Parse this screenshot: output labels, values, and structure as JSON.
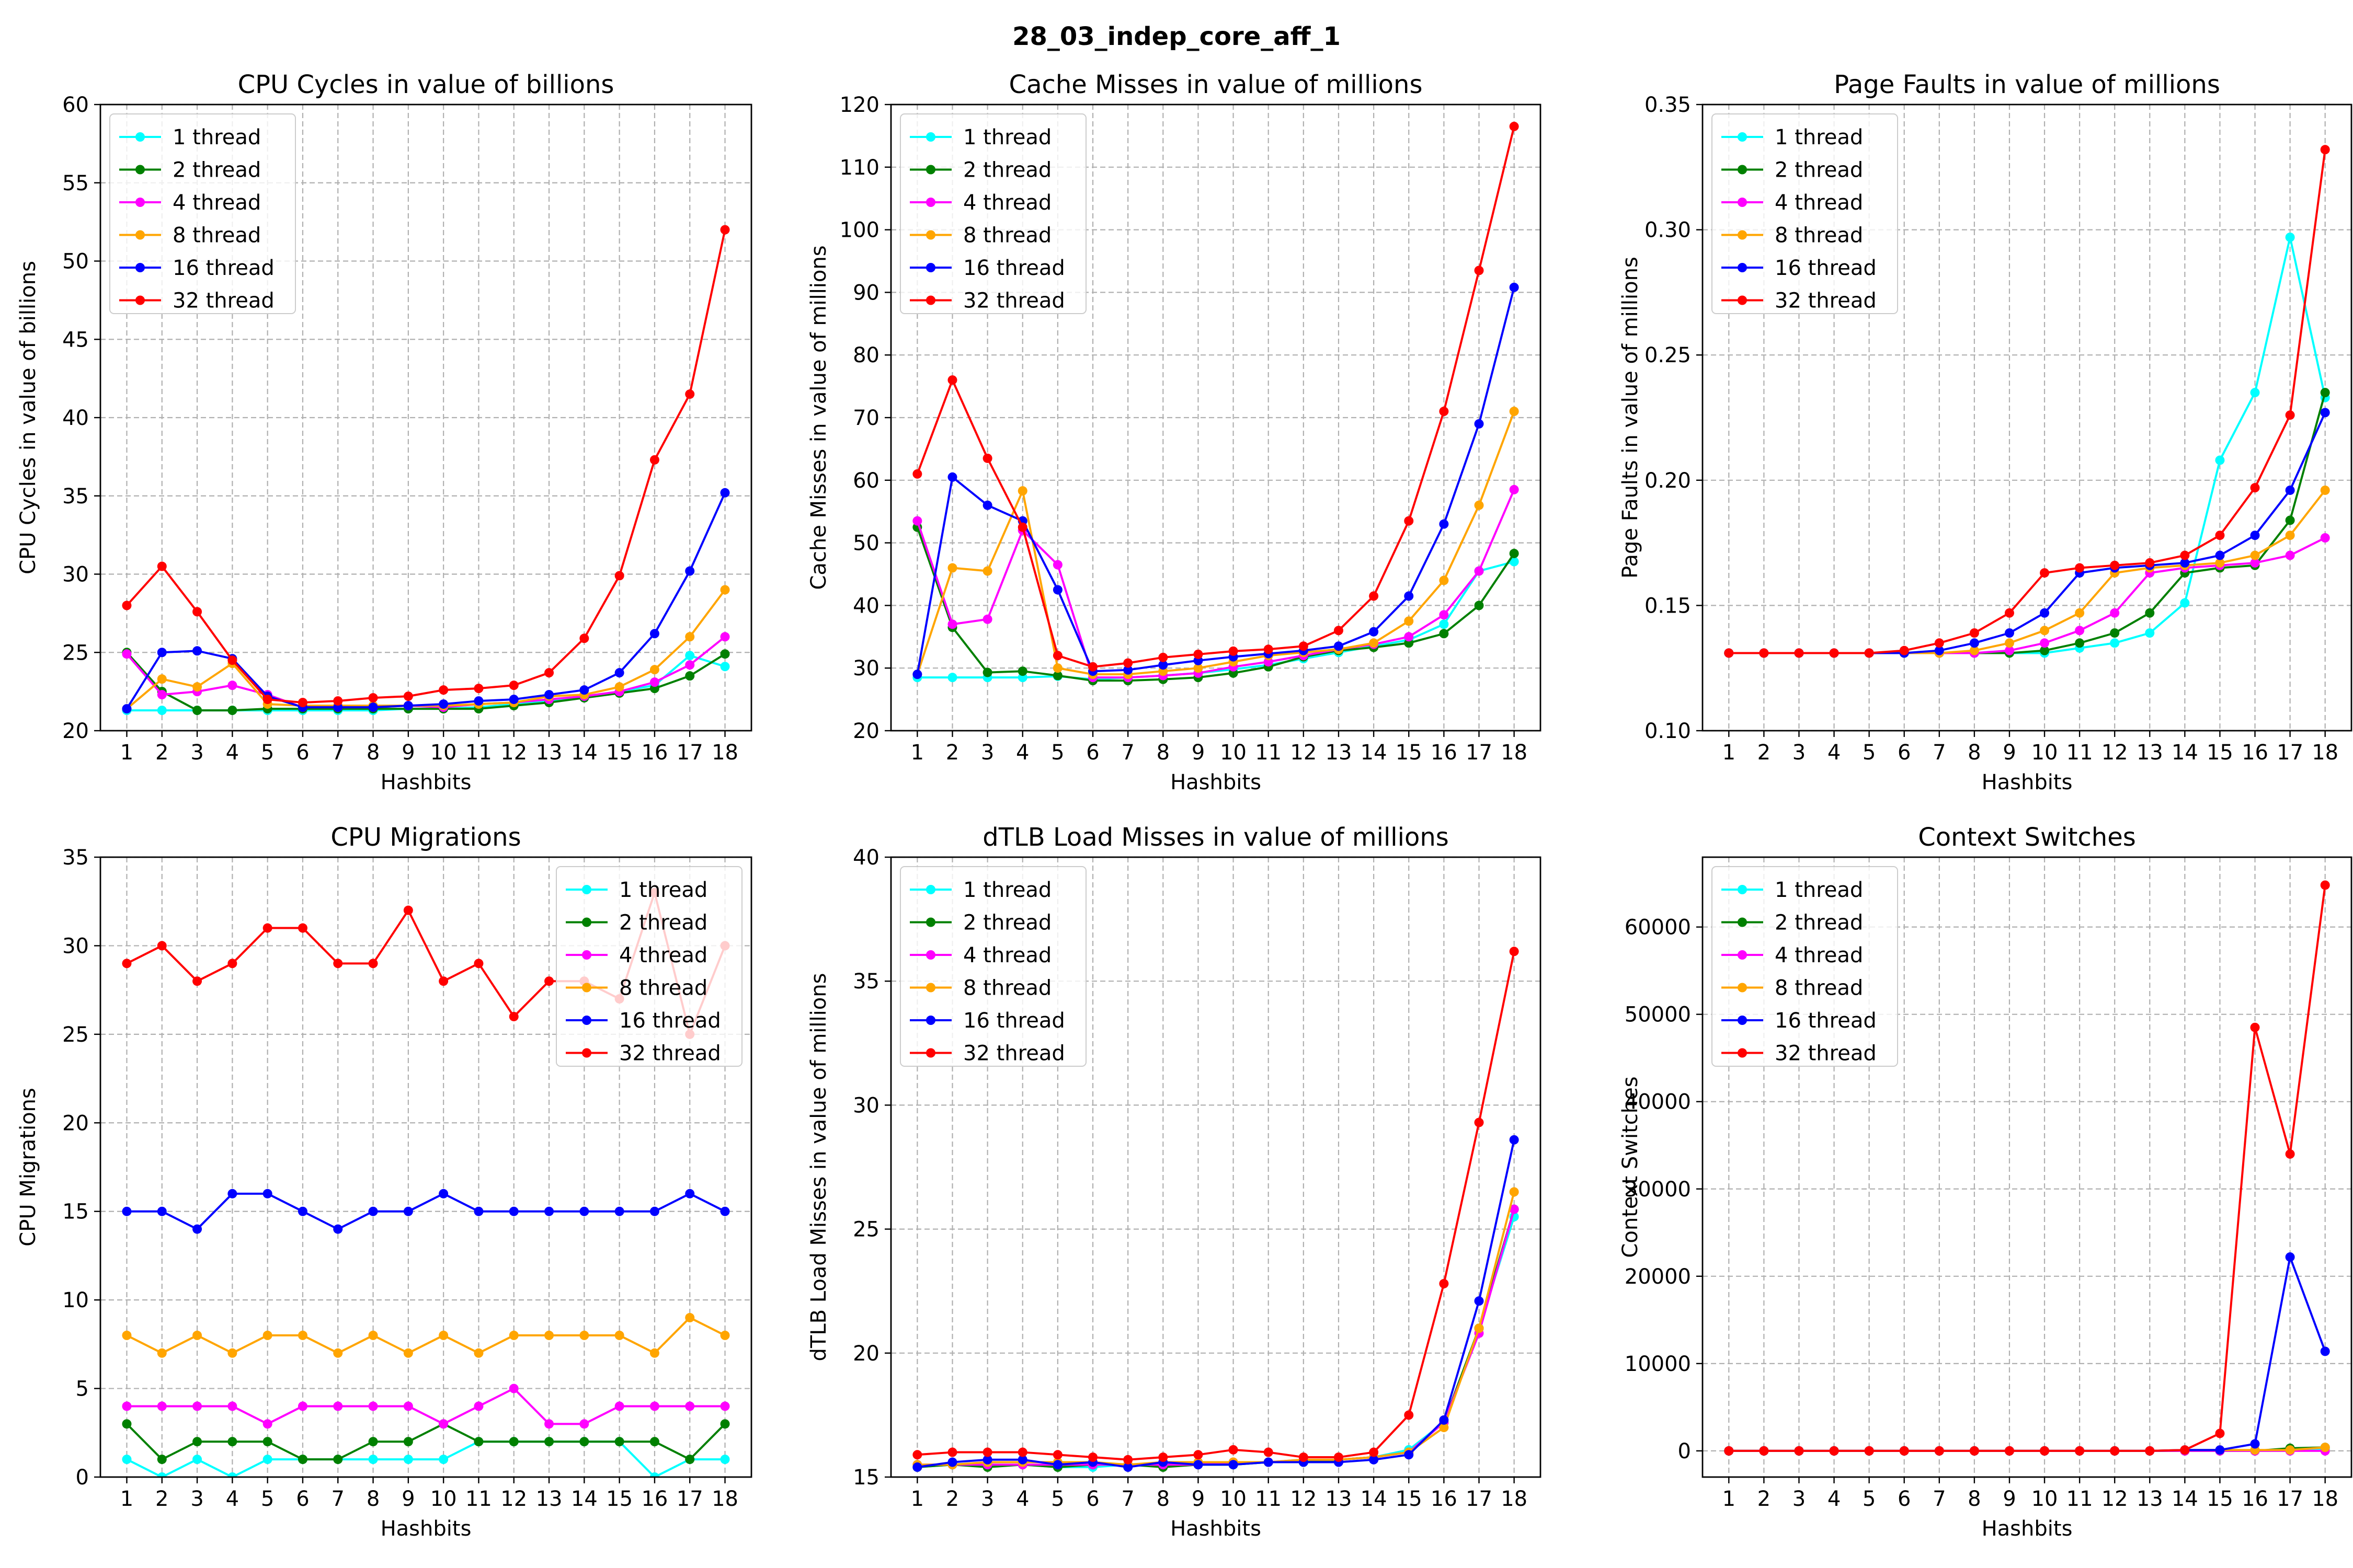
{
  "figure_title": "28_03_indep_core_aff_1",
  "series_colors": {
    "1 thread": "#00ffff",
    "2 thread": "#008000",
    "4 thread": "#ff00ff",
    "8 thread": "#ffa500",
    "16 thread": "#0000ff",
    "32 thread": "#ff0000"
  },
  "chart_data": [
    {
      "type": "line",
      "title": "CPU Cycles in value of billions",
      "xlabel": "Hashbits",
      "ylabel": "CPU Cycles in value of billions",
      "x": [
        1,
        2,
        3,
        4,
        5,
        6,
        7,
        8,
        9,
        10,
        11,
        12,
        13,
        14,
        15,
        16,
        17,
        18
      ],
      "ylim": [
        20,
        60
      ],
      "yticks": [
        20,
        25,
        30,
        35,
        40,
        45,
        50,
        55,
        60
      ],
      "ytick_labels": [
        "20",
        "25",
        "30",
        "35",
        "40",
        "45",
        "50",
        "55",
        "60"
      ],
      "grid": true,
      "legend_position": "upper-left",
      "series": [
        {
          "name": "1 thread",
          "values": [
            21.3,
            21.3,
            21.3,
            21.3,
            21.3,
            21.3,
            21.3,
            21.3,
            21.4,
            21.4,
            21.5,
            21.7,
            21.9,
            22.1,
            22.5,
            22.9,
            24.8,
            24.1
          ]
        },
        {
          "name": "2 thread",
          "values": [
            25.0,
            22.5,
            21.3,
            21.3,
            21.4,
            21.4,
            21.4,
            21.4,
            21.4,
            21.4,
            21.4,
            21.6,
            21.8,
            22.1,
            22.4,
            22.7,
            23.5,
            24.9
          ]
        },
        {
          "name": "4 thread",
          "values": [
            24.9,
            22.3,
            22.5,
            22.9,
            22.3,
            21.5,
            21.5,
            21.5,
            21.6,
            21.5,
            21.7,
            21.8,
            22.0,
            22.2,
            22.5,
            23.1,
            24.2,
            26.0
          ]
        },
        {
          "name": "8 thread",
          "values": [
            21.4,
            23.3,
            22.8,
            24.3,
            21.7,
            21.6,
            21.6,
            21.6,
            21.6,
            21.6,
            21.7,
            21.8,
            22.2,
            22.3,
            22.8,
            23.9,
            26.0,
            29.0
          ]
        },
        {
          "name": "16 thread",
          "values": [
            21.4,
            25.0,
            25.1,
            24.6,
            22.2,
            21.5,
            21.5,
            21.5,
            21.6,
            21.7,
            21.9,
            22.0,
            22.3,
            22.6,
            23.7,
            26.2,
            30.2,
            35.2
          ]
        },
        {
          "name": "32 thread",
          "values": [
            28.0,
            30.5,
            27.6,
            24.5,
            22.0,
            21.8,
            21.9,
            22.1,
            22.2,
            22.6,
            22.7,
            22.9,
            23.7,
            25.9,
            29.9,
            37.3,
            41.5,
            52.0
          ]
        }
      ]
    },
    {
      "type": "line",
      "title": "Cache Misses in value of millions",
      "xlabel": "Hashbits",
      "ylabel": "Cache Misses in value of millions",
      "x": [
        1,
        2,
        3,
        4,
        5,
        6,
        7,
        8,
        9,
        10,
        11,
        12,
        13,
        14,
        15,
        16,
        17,
        18
      ],
      "ylim": [
        20,
        120
      ],
      "yticks": [
        20,
        30,
        40,
        50,
        60,
        70,
        80,
        90,
        100,
        110,
        120
      ],
      "ytick_labels": [
        "20",
        "30",
        "40",
        "50",
        "60",
        "70",
        "80",
        "90",
        "100",
        "110",
        "120"
      ],
      "grid": true,
      "legend_position": "upper-left",
      "series": [
        {
          "name": "1 thread",
          "values": [
            28.5,
            28.5,
            28.5,
            28.5,
            28.7,
            28.2,
            28.5,
            28.8,
            29.2,
            29.8,
            30.5,
            31.5,
            32.5,
            33.5,
            34.5,
            37.0,
            45.5,
            47.0
          ]
        },
        {
          "name": "2 thread",
          "values": [
            52.5,
            36.5,
            29.3,
            29.5,
            28.8,
            28.0,
            28.0,
            28.2,
            28.5,
            29.2,
            30.2,
            31.8,
            32.8,
            33.3,
            34.0,
            35.5,
            40.0,
            48.3
          ]
        },
        {
          "name": "4 thread",
          "values": [
            53.5,
            37.0,
            37.8,
            52.0,
            46.5,
            28.5,
            28.5,
            28.8,
            29.2,
            30.2,
            31.0,
            32.0,
            33.0,
            33.8,
            35.0,
            38.5,
            45.5,
            58.5
          ]
        },
        {
          "name": "8 thread",
          "values": [
            29.0,
            46.0,
            45.5,
            58.3,
            30.0,
            29.0,
            29.0,
            29.5,
            30.0,
            31.0,
            32.0,
            32.5,
            33.0,
            34.0,
            37.5,
            44.0,
            56.0,
            71.0
          ]
        },
        {
          "name": "16 thread",
          "values": [
            29.0,
            60.5,
            56.0,
            53.5,
            42.5,
            29.5,
            29.7,
            30.5,
            31.2,
            31.8,
            32.3,
            32.8,
            33.5,
            35.8,
            41.5,
            53.0,
            69.0,
            90.8
          ]
        },
        {
          "name": "32 thread",
          "values": [
            61.0,
            76.0,
            63.5,
            52.5,
            32.0,
            30.2,
            30.8,
            31.7,
            32.2,
            32.7,
            33.0,
            33.5,
            36.0,
            41.5,
            53.5,
            71.0,
            93.5,
            116.5
          ]
        }
      ]
    },
    {
      "type": "line",
      "title": "Page Faults in value of millions",
      "xlabel": "Hashbits",
      "ylabel": "Page Faults in value of millions",
      "x": [
        1,
        2,
        3,
        4,
        5,
        6,
        7,
        8,
        9,
        10,
        11,
        12,
        13,
        14,
        15,
        16,
        17,
        18
      ],
      "ylim": [
        0.1,
        0.35
      ],
      "yticks": [
        0.1,
        0.15,
        0.2,
        0.25,
        0.3,
        0.35
      ],
      "ytick_labels": [
        "0.10",
        "0.15",
        "0.20",
        "0.25",
        "0.30",
        "0.35"
      ],
      "grid": true,
      "legend_position": "upper-left",
      "series": [
        {
          "name": "1 thread",
          "values": [
            0.131,
            0.131,
            0.131,
            0.131,
            0.131,
            0.131,
            0.131,
            0.131,
            0.131,
            0.131,
            0.133,
            0.135,
            0.139,
            0.151,
            0.208,
            0.235,
            0.297,
            0.233
          ]
        },
        {
          "name": "2 thread",
          "values": [
            0.131,
            0.131,
            0.131,
            0.131,
            0.131,
            0.131,
            0.131,
            0.131,
            0.131,
            0.132,
            0.135,
            0.139,
            0.147,
            0.163,
            0.165,
            0.166,
            0.184,
            0.235
          ]
        },
        {
          "name": "4 thread",
          "values": [
            0.131,
            0.131,
            0.131,
            0.131,
            0.131,
            0.131,
            0.131,
            0.131,
            0.132,
            0.135,
            0.14,
            0.147,
            0.163,
            0.165,
            0.166,
            0.167,
            0.17,
            0.177
          ]
        },
        {
          "name": "8 thread",
          "values": [
            0.131,
            0.131,
            0.131,
            0.131,
            0.131,
            0.131,
            0.131,
            0.132,
            0.135,
            0.14,
            0.147,
            0.163,
            0.165,
            0.166,
            0.167,
            0.17,
            0.178,
            0.196
          ]
        },
        {
          "name": "16 thread",
          "values": [
            0.131,
            0.131,
            0.131,
            0.131,
            0.131,
            0.131,
            0.132,
            0.135,
            0.139,
            0.147,
            0.163,
            0.165,
            0.166,
            0.167,
            0.17,
            0.178,
            0.196,
            0.227
          ]
        },
        {
          "name": "32 thread",
          "values": [
            0.131,
            0.131,
            0.131,
            0.131,
            0.131,
            0.132,
            0.135,
            0.139,
            0.147,
            0.163,
            0.165,
            0.166,
            0.167,
            0.17,
            0.178,
            0.197,
            0.226,
            0.332
          ]
        }
      ]
    },
    {
      "type": "line",
      "title": "CPU Migrations",
      "xlabel": "Hashbits",
      "ylabel": "CPU Migrations",
      "x": [
        1,
        2,
        3,
        4,
        5,
        6,
        7,
        8,
        9,
        10,
        11,
        12,
        13,
        14,
        15,
        16,
        17,
        18
      ],
      "ylim": [
        0,
        35
      ],
      "yticks": [
        0,
        5,
        10,
        15,
        20,
        25,
        30,
        35
      ],
      "ytick_labels": [
        "0",
        "5",
        "10",
        "15",
        "20",
        "25",
        "30",
        "35"
      ],
      "grid": true,
      "legend_position": "upper-right",
      "series": [
        {
          "name": "1 thread",
          "values": [
            1,
            0,
            1,
            0,
            1,
            1,
            1,
            1,
            1,
            1,
            2,
            2,
            2,
            2,
            2,
            0,
            1,
            1
          ]
        },
        {
          "name": "2 thread",
          "values": [
            3,
            1,
            2,
            2,
            2,
            1,
            1,
            2,
            2,
            3,
            2,
            2,
            2,
            2,
            2,
            2,
            1,
            3
          ]
        },
        {
          "name": "4 thread",
          "values": [
            4,
            4,
            4,
            4,
            3,
            4,
            4,
            4,
            4,
            3,
            4,
            5,
            3,
            3,
            4,
            4,
            4,
            4
          ]
        },
        {
          "name": "8 thread",
          "values": [
            8,
            7,
            8,
            7,
            8,
            8,
            7,
            8,
            7,
            8,
            7,
            8,
            8,
            8,
            8,
            7,
            9,
            8
          ]
        },
        {
          "name": "16 thread",
          "values": [
            15,
            15,
            14,
            16,
            16,
            15,
            14,
            15,
            15,
            16,
            15,
            15,
            15,
            15,
            15,
            15,
            16,
            15
          ]
        },
        {
          "name": "32 thread",
          "values": [
            29,
            30,
            28,
            29,
            31,
            31,
            29,
            29,
            32,
            28,
            29,
            26,
            28,
            28,
            27,
            33,
            25,
            30
          ]
        }
      ]
    },
    {
      "type": "line",
      "title": "dTLB Load Misses in value of millions",
      "xlabel": "Hashbits",
      "ylabel": "dTLB Load Misses in value of millions",
      "x": [
        1,
        2,
        3,
        4,
        5,
        6,
        7,
        8,
        9,
        10,
        11,
        12,
        13,
        14,
        15,
        16,
        17,
        18
      ],
      "ylim": [
        15,
        40
      ],
      "yticks": [
        15,
        20,
        25,
        30,
        35,
        40
      ],
      "ytick_labels": [
        "15",
        "20",
        "25",
        "30",
        "35",
        "40"
      ],
      "grid": true,
      "legend_position": "upper-left",
      "series": [
        {
          "name": "1 thread",
          "values": [
            15.4,
            15.5,
            15.5,
            15.5,
            15.4,
            15.4,
            15.5,
            15.5,
            15.5,
            15.5,
            15.6,
            15.6,
            15.7,
            15.8,
            16.1,
            17.2,
            21.0,
            25.5
          ]
        },
        {
          "name": "2 thread",
          "values": [
            15.4,
            15.5,
            15.4,
            15.5,
            15.4,
            15.5,
            15.5,
            15.4,
            15.5,
            15.5,
            15.6,
            15.6,
            15.7,
            15.8,
            16.0,
            17.2,
            21.0,
            25.8
          ]
        },
        {
          "name": "4 thread",
          "values": [
            15.5,
            15.5,
            15.5,
            15.5,
            15.5,
            15.5,
            15.5,
            15.5,
            15.5,
            15.6,
            15.6,
            15.7,
            15.7,
            15.8,
            16.0,
            17.2,
            20.8,
            25.8
          ]
        },
        {
          "name": "8 thread",
          "values": [
            15.5,
            15.5,
            15.6,
            15.6,
            15.6,
            15.6,
            15.5,
            15.6,
            15.6,
            15.6,
            15.6,
            15.7,
            15.7,
            15.8,
            16.0,
            17.0,
            21.0,
            26.5
          ]
        },
        {
          "name": "16 thread",
          "values": [
            15.4,
            15.6,
            15.7,
            15.7,
            15.5,
            15.6,
            15.4,
            15.6,
            15.5,
            15.5,
            15.6,
            15.6,
            15.6,
            15.7,
            15.9,
            17.3,
            22.1,
            28.6
          ]
        },
        {
          "name": "32 thread",
          "values": [
            15.9,
            16.0,
            16.0,
            16.0,
            15.9,
            15.8,
            15.7,
            15.8,
            15.9,
            16.1,
            16.0,
            15.8,
            15.8,
            16.0,
            17.5,
            22.8,
            29.3,
            36.2
          ]
        }
      ]
    },
    {
      "type": "line",
      "title": "Context Switches",
      "xlabel": "Hashbits",
      "ylabel": "Context Switches",
      "x": [
        1,
        2,
        3,
        4,
        5,
        6,
        7,
        8,
        9,
        10,
        11,
        12,
        13,
        14,
        15,
        16,
        17,
        18
      ],
      "ylim": [
        -3000,
        68000
      ],
      "yticks": [
        0,
        10000,
        20000,
        30000,
        40000,
        50000,
        60000
      ],
      "ytick_labels": [
        "0",
        "10000",
        "20000",
        "30000",
        "40000",
        "50000",
        "60000"
      ],
      "grid": true,
      "legend_position": "upper-left",
      "series": [
        {
          "name": "1 thread",
          "values": [
            0,
            0,
            0,
            0,
            0,
            0,
            0,
            0,
            0,
            0,
            0,
            0,
            0,
            0,
            0,
            0,
            0,
            200
          ]
        },
        {
          "name": "2 thread",
          "values": [
            0,
            0,
            0,
            0,
            0,
            0,
            0,
            0,
            0,
            0,
            0,
            0,
            0,
            0,
            0,
            0,
            300,
            400
          ]
        },
        {
          "name": "4 thread",
          "values": [
            0,
            0,
            0,
            0,
            0,
            0,
            0,
            0,
            0,
            0,
            0,
            0,
            0,
            0,
            0,
            0,
            0,
            0
          ]
        },
        {
          "name": "8 thread",
          "values": [
            0,
            0,
            0,
            0,
            0,
            0,
            0,
            0,
            0,
            0,
            0,
            0,
            0,
            100,
            100,
            100,
            100,
            400
          ]
        },
        {
          "name": "16 thread",
          "values": [
            0,
            0,
            0,
            0,
            0,
            0,
            0,
            0,
            0,
            0,
            0,
            0,
            0,
            100,
            100,
            800,
            22200,
            11400
          ]
        },
        {
          "name": "32 thread",
          "values": [
            0,
            0,
            0,
            0,
            0,
            0,
            0,
            0,
            0,
            0,
            0,
            0,
            0,
            100,
            2000,
            48500,
            34000,
            64800
          ]
        }
      ]
    }
  ]
}
